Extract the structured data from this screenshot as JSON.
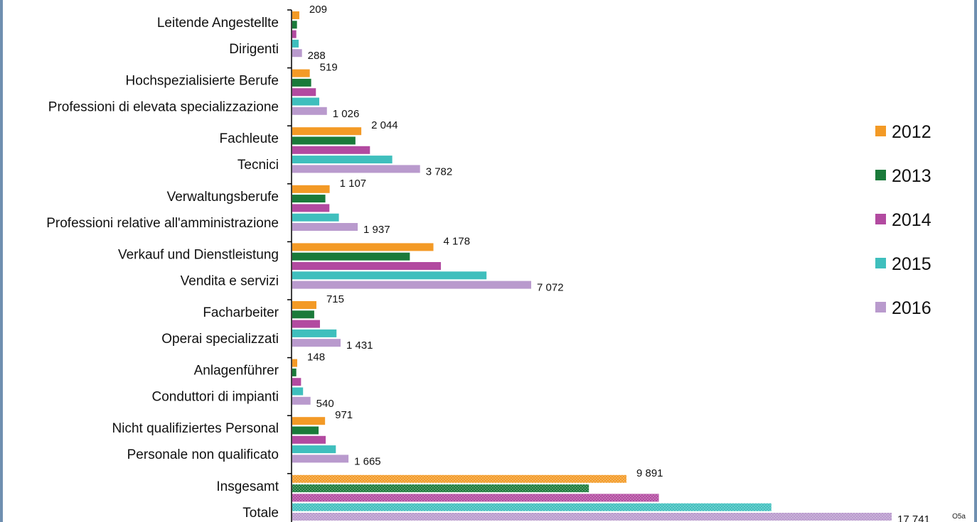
{
  "chart_data": {
    "type": "bar",
    "orientation": "horizontal",
    "categories": [
      [
        "Leitende Angestellte",
        "Dirigenti"
      ],
      [
        "Hochspezialisierte Berufe",
        "Professioni di elevata specializzazione"
      ],
      [
        "Fachleute",
        "Tecnici"
      ],
      [
        "Verwaltungsberufe",
        "Professioni relative all'amministrazione"
      ],
      [
        "Verkauf und Dienstleistung",
        "Vendita e servizi"
      ],
      [
        "Facharbeiter",
        "Operai specializzati"
      ],
      [
        "Anlagenführer",
        "Conduttori di impianti"
      ],
      [
        "Nicht qualifiziertes Personal",
        "Personale non qualificato"
      ],
      [
        "Insgesamt",
        "Totale"
      ]
    ],
    "series": [
      {
        "name": "2012",
        "color": "#f39a26",
        "values": [
          209,
          519,
          2044,
          1107,
          4178,
          715,
          148,
          971,
          9891
        ]
      },
      {
        "name": "2013",
        "color": "#1a7a3a",
        "values": [
          140,
          560,
          1870,
          980,
          3480,
          650,
          120,
          780,
          8780
        ]
      },
      {
        "name": "2014",
        "color": "#b24aa0",
        "values": [
          120,
          700,
          2300,
          1100,
          4400,
          820,
          260,
          990,
          10850
        ]
      },
      {
        "name": "2015",
        "color": "#3fbfbd",
        "values": [
          190,
          800,
          2960,
          1380,
          5750,
          1310,
          320,
          1290,
          14180
        ]
      },
      {
        "name": "2016",
        "color": "#b99acd",
        "values": [
          288,
          1026,
          3782,
          1937,
          7072,
          1431,
          540,
          1665,
          17741
        ]
      }
    ],
    "data_labels": [
      {
        "category": 0,
        "series": 0,
        "text": "209"
      },
      {
        "category": 0,
        "series": 4,
        "text": "288"
      },
      {
        "category": 1,
        "series": 0,
        "text": "519"
      },
      {
        "category": 1,
        "series": 4,
        "text": "1 026"
      },
      {
        "category": 2,
        "series": 0,
        "text": "2 044"
      },
      {
        "category": 2,
        "series": 4,
        "text": "3 782"
      },
      {
        "category": 3,
        "series": 0,
        "text": "1 107"
      },
      {
        "category": 3,
        "series": 4,
        "text": "1 937"
      },
      {
        "category": 4,
        "series": 0,
        "text": "4 178"
      },
      {
        "category": 4,
        "series": 4,
        "text": "7 072"
      },
      {
        "category": 5,
        "series": 0,
        "text": "715"
      },
      {
        "category": 5,
        "series": 4,
        "text": "1 431"
      },
      {
        "category": 6,
        "series": 0,
        "text": "148"
      },
      {
        "category": 6,
        "series": 4,
        "text": "540"
      },
      {
        "category": 7,
        "series": 0,
        "text": "971"
      },
      {
        "category": 7,
        "series": 4,
        "text": "1 665"
      },
      {
        "category": 8,
        "series": 0,
        "text": "9 891"
      },
      {
        "category": 8,
        "series": 4,
        "text": "17 741"
      }
    ],
    "patterned_category": 8,
    "xlim": [
      0,
      17741
    ],
    "grid": false,
    "legend_position": "right",
    "title": "",
    "xlabel": "",
    "ylabel": ""
  },
  "figure_code": "O5a"
}
